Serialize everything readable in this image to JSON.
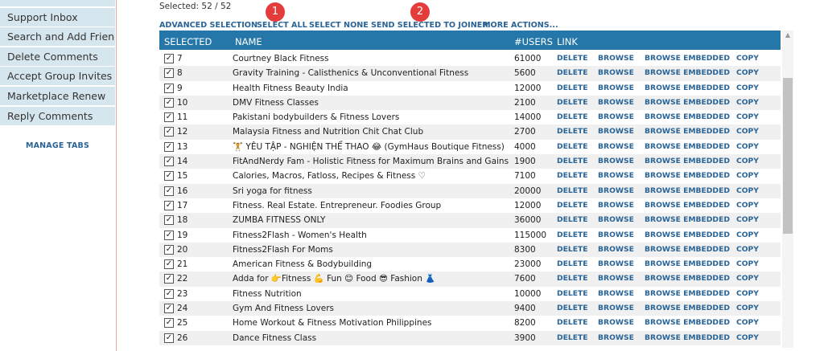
{
  "sidebar": {
    "items": [
      {
        "label": ""
      },
      {
        "label": "Support Inbox"
      },
      {
        "label": "Search and Add Friends"
      },
      {
        "label": "Delete Comments"
      },
      {
        "label": "Accept Group Invites"
      },
      {
        "label": "Marketplace Renew"
      },
      {
        "label": "Reply Comments"
      }
    ],
    "manage_tabs": "MANAGE TABS"
  },
  "selection": {
    "text": "Selected:  52 / 52"
  },
  "actions": {
    "advanced": "ADVANCED SELECTION",
    "select_all": "SELECT ALL",
    "select_none": "SELECT NONE",
    "send_joiner": "SEND SELECTED TO JOINER",
    "more": "MORE ACTIONS..."
  },
  "badges": {
    "one": "1",
    "two": "2"
  },
  "table": {
    "headers": {
      "selected": "SELECTED",
      "name": "NAME",
      "users": "#USERS",
      "link": "LINK"
    },
    "link_labels": {
      "delete": "DELETE",
      "browse": "BROWSE",
      "embedded": "BROWSE EMBEDDED",
      "copy": "COPY"
    },
    "check": "✓",
    "rows": [
      {
        "id": "7",
        "name": "Courtney Black Fitness",
        "users": "61000"
      },
      {
        "id": "8",
        "name": "Gravity Training - Calisthenics & Unconventional Fitness",
        "users": "5600"
      },
      {
        "id": "9",
        "name": "Health Fitness Beauty India",
        "users": "12000"
      },
      {
        "id": "10",
        "name": "DMV Fitness Classes",
        "users": "2100"
      },
      {
        "id": "11",
        "name": "Pakistani bodybuilders & Fitness Lovers",
        "users": "14000"
      },
      {
        "id": "12",
        "name": "Malaysia Fitness and Nutrition Chit Chat Club",
        "users": "2700"
      },
      {
        "id": "13",
        "name": "🏋 YÊU TẬP - NGHIỆN THỂ THAO 😂 (GymHaus Boutique Fitness)",
        "users": "4000"
      },
      {
        "id": "14",
        "name": "FitAndNerdy Fam - Holistic Fitness for Maximum Brains and Gains",
        "users": "1900"
      },
      {
        "id": "15",
        "name": "Calories, Macros, Fatloss, Recipes & Fitness ♡",
        "users": "7100"
      },
      {
        "id": "16",
        "name": "Sri yoga for fitness",
        "users": "20000"
      },
      {
        "id": "17",
        "name": "Fitness. Real Estate. Entrepreneur. Foodies Group",
        "users": "12000"
      },
      {
        "id": "18",
        "name": "ZUMBA FITNESS ONLY",
        "users": "36000"
      },
      {
        "id": "19",
        "name": "Fitness2Flash - Women's Health",
        "users": "115000"
      },
      {
        "id": "20",
        "name": "Fitness2Flash For Moms",
        "users": "8300"
      },
      {
        "id": "21",
        "name": "American Fitness & Bodybuilding",
        "users": "23000"
      },
      {
        "id": "22",
        "name": "Adda for 👉Fitness 💪 Fun 😊 Food 😎 Fashion 👗",
        "users": "7600"
      },
      {
        "id": "23",
        "name": "Fitness Nutrition",
        "users": "10000"
      },
      {
        "id": "24",
        "name": "Gym And Fitness Lovers",
        "users": "9400"
      },
      {
        "id": "25",
        "name": "Home Workout & Fitness Motivation Philippines",
        "users": "8200"
      },
      {
        "id": "26",
        "name": "Dance Fitness Class",
        "users": "3900"
      }
    ]
  },
  "scrollbar": {
    "up_arrow": "▲"
  }
}
